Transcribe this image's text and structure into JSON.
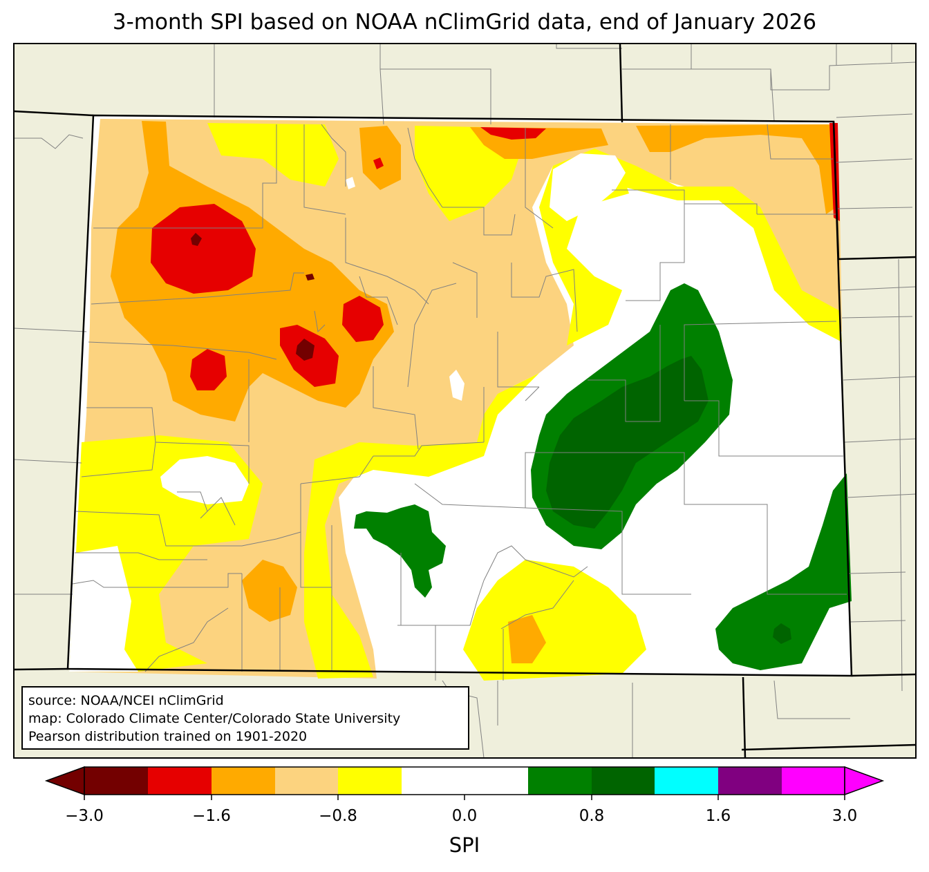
{
  "title": "3-month SPI based on NOAA nClimGrid data, end of January 2026",
  "source_box": {
    "line1": "source: NOAA/NCEI nClimGrid",
    "line2": "map: Colorado Climate Center/Colorado State University",
    "line3": "Pearson distribution trained on 1901-2020"
  },
  "colorbar": {
    "label": "SPI",
    "ticks": [
      "−3.0",
      "−1.6",
      "−0.8",
      "0.0",
      "0.8",
      "1.6",
      "3.0"
    ],
    "colors": [
      "#730000",
      "#e60000",
      "#ffaa00",
      "#fcd37f",
      "#ffff00",
      "#ffffff",
      "#ffffff",
      "#008000",
      "#006400",
      "#00ffff",
      "#800080",
      "#ff00ff"
    ],
    "under_color": "#730000",
    "over_color": "#ff00ff"
  },
  "colors": {
    "land_outside": "#efefdc",
    "state_border": "#000000",
    "county_border": "#808080"
  }
}
